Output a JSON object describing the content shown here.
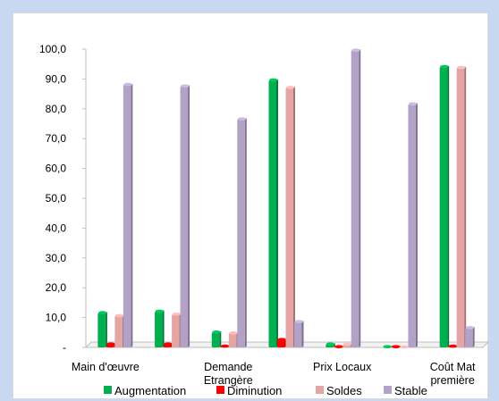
{
  "chart_data": {
    "type": "bar",
    "title": "",
    "xlabel": "",
    "ylabel": "",
    "ylim": [
      0,
      100
    ],
    "yticks": [
      "-",
      "10,0",
      "20,0",
      "30,0",
      "40,0",
      "50,0",
      "60,0",
      "70,0",
      "80,0",
      "90,0",
      "100,0"
    ],
    "categories": [
      "Main d'œuvre",
      "",
      "Demande Etrangère",
      "",
      "Prix Locaux",
      "",
      "Coût Mat première"
    ],
    "grid": false,
    "legend_position": "bottom",
    "series": [
      {
        "name": "Augmentation",
        "color": "#00b050",
        "values": [
          11.5,
          12.0,
          5.0,
          89.5,
          1.0,
          0.1,
          94.0
        ]
      },
      {
        "name": "Diminution",
        "color": "#ff0000",
        "values": [
          1.0,
          1.0,
          0.3,
          2.5,
          0.1,
          0.1,
          0.3
        ]
      },
      {
        "name": "Soldes",
        "color": "#e6a5a5",
        "values": [
          10.5,
          11.0,
          4.7,
          87.0,
          0.9,
          0.0,
          93.7
        ]
      },
      {
        "name": "Stable",
        "color": "#b3a2c7",
        "values": [
          88.0,
          87.5,
          76.5,
          8.5,
          99.5,
          81.5,
          6.5
        ]
      }
    ]
  }
}
